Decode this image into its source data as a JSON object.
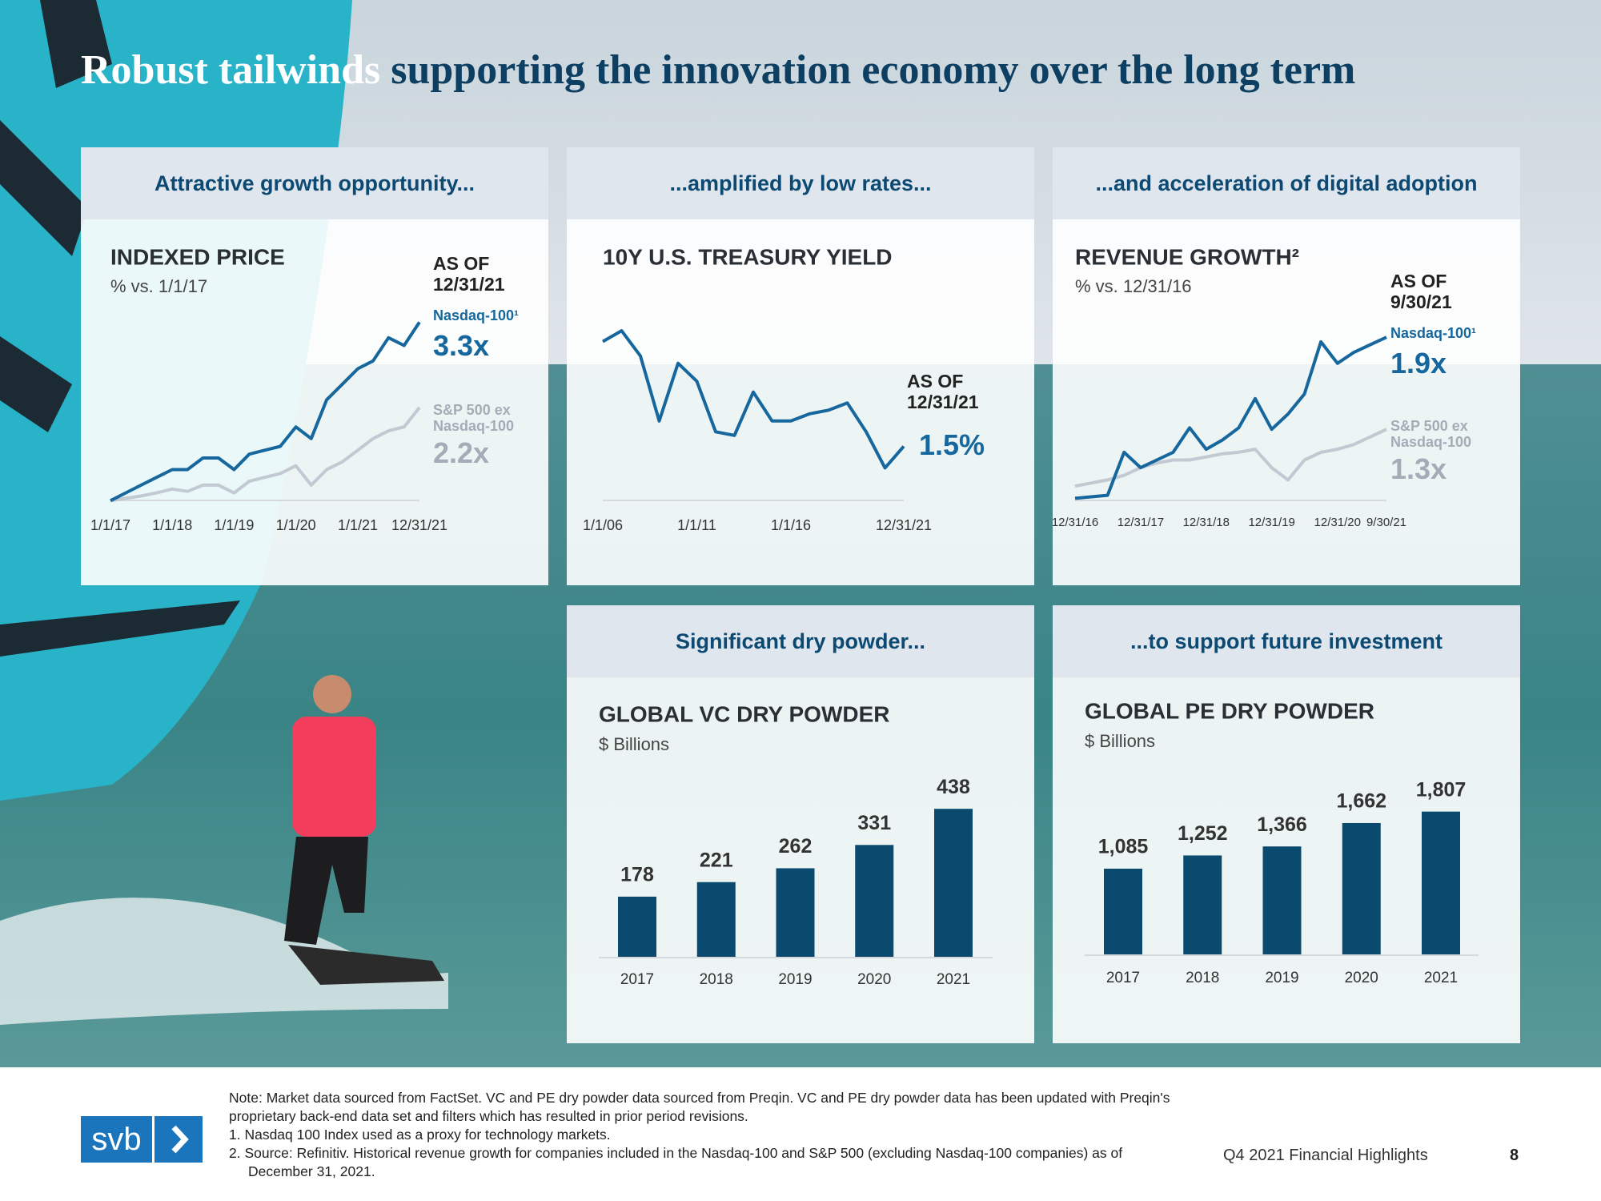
{
  "title": {
    "highlight": "Robust tailwinds",
    "rest": "supporting the innovation economy over the long term"
  },
  "chart_data": [
    {
      "type": "line",
      "panel_heading": "Attractive growth opportunity...",
      "title": "INDEXED PRICE",
      "subtitle": "% vs. 1/1/17",
      "as_of": "AS OF 12/31/21",
      "x": [
        "1/1/17",
        "4/1/17",
        "7/1/17",
        "10/1/17",
        "1/1/18",
        "4/1/18",
        "7/1/18",
        "10/1/18",
        "1/1/19",
        "4/1/19",
        "7/1/19",
        "10/1/19",
        "1/1/20",
        "4/1/20",
        "7/1/20",
        "10/1/20",
        "1/1/21",
        "4/1/21",
        "7/1/21",
        "10/1/21",
        "12/31/21"
      ],
      "xticks": [
        "1/1/17",
        "1/1/18",
        "1/1/19",
        "1/1/20",
        "1/1/21",
        "12/31/21"
      ],
      "ylim": [
        0.9,
        3.5
      ],
      "series": [
        {
          "name": "Nasdaq-100¹",
          "color": "#16679d",
          "end_label": "3.3x",
          "values": [
            1.0,
            1.1,
            1.2,
            1.3,
            1.4,
            1.4,
            1.55,
            1.55,
            1.4,
            1.6,
            1.65,
            1.7,
            1.95,
            1.8,
            2.3,
            2.5,
            2.7,
            2.8,
            3.1,
            3.0,
            3.3
          ]
        },
        {
          "name": "S&P 500 ex Nasdaq-100",
          "color": "#c2c9d2",
          "end_label": "2.2x",
          "values": [
            1.0,
            1.03,
            1.06,
            1.1,
            1.15,
            1.12,
            1.2,
            1.2,
            1.1,
            1.25,
            1.3,
            1.35,
            1.45,
            1.2,
            1.4,
            1.5,
            1.65,
            1.8,
            1.9,
            1.95,
            2.2
          ]
        }
      ]
    },
    {
      "type": "line",
      "panel_heading": "...amplified by low rates...",
      "title": "10Y U.S. TREASURY YIELD",
      "as_of": "AS OF 12/31/21",
      "x": [
        "1/1/06",
        "1/1/07",
        "1/1/08",
        "1/1/09",
        "1/1/10",
        "1/1/11",
        "1/1/12",
        "1/1/13",
        "1/1/14",
        "1/1/15",
        "1/1/16",
        "1/1/17",
        "1/1/18",
        "1/1/19",
        "1/1/20",
        "1/1/21",
        "12/31/21"
      ],
      "xticks": [
        "1/1/06",
        "1/1/11",
        "1/1/16",
        "12/31/21"
      ],
      "ylim": [
        0,
        5.5
      ],
      "series": [
        {
          "color": "#16679d",
          "end_label": "1.5%",
          "values": [
            4.4,
            4.7,
            4.0,
            2.2,
            3.8,
            3.3,
            1.9,
            1.8,
            3.0,
            2.2,
            2.2,
            2.4,
            2.5,
            2.7,
            1.9,
            0.9,
            1.5
          ]
        }
      ]
    },
    {
      "type": "line",
      "panel_heading": "...and acceleration of digital adoption",
      "title": "REVENUE GROWTH²",
      "subtitle": "% vs. 12/31/16",
      "as_of": "AS OF 9/30/21",
      "x": [
        "12/31/16",
        "3/31/17",
        "6/30/17",
        "9/30/17",
        "12/31/17",
        "3/31/18",
        "6/30/18",
        "9/30/18",
        "12/31/18",
        "3/31/19",
        "6/30/19",
        "9/30/19",
        "12/31/19",
        "3/31/20",
        "6/30/20",
        "9/30/20",
        "12/31/20",
        "3/31/21",
        "6/30/21",
        "9/30/21"
      ],
      "xticks": [
        "12/31/16",
        "12/31/17",
        "12/31/18",
        "12/31/19",
        "12/31/20",
        "9/30/21"
      ],
      "ylim": [
        0.8,
        2.0
      ],
      "series": [
        {
          "name": "Nasdaq-100¹",
          "color": "#16679d",
          "end_label": "1.9x",
          "values": [
            0.85,
            0.86,
            0.87,
            1.15,
            1.05,
            1.1,
            1.15,
            1.31,
            1.17,
            1.23,
            1.31,
            1.5,
            1.3,
            1.4,
            1.53,
            1.87,
            1.73,
            1.8,
            1.85,
            1.9
          ]
        },
        {
          "name": "S&P 500 ex Nasdaq-100",
          "color": "#c2c9d2",
          "end_label": "1.3x",
          "values": [
            0.93,
            0.95,
            0.97,
            1.0,
            1.05,
            1.08,
            1.1,
            1.1,
            1.12,
            1.14,
            1.15,
            1.17,
            1.05,
            0.97,
            1.1,
            1.15,
            1.17,
            1.2,
            1.25,
            1.3
          ]
        }
      ]
    },
    {
      "type": "bar",
      "panel_heading": "Significant dry powder...",
      "title": "GLOBAL VC DRY POWDER",
      "subtitle": "$ Billions",
      "categories": [
        "2017",
        "2018",
        "2019",
        "2020",
        "2021"
      ],
      "values": [
        178,
        221,
        262,
        331,
        438
      ],
      "color": "#0a4a6f",
      "ylim": [
        0,
        500
      ]
    },
    {
      "type": "bar",
      "panel_heading": "...to support future investment",
      "title": "GLOBAL PE DRY POWDER",
      "subtitle": "$ Billions",
      "categories": [
        "2017",
        "2018",
        "2019",
        "2020",
        "2021"
      ],
      "values": [
        1085,
        1252,
        1366,
        1662,
        1807
      ],
      "value_labels": [
        "1,085",
        "1,252",
        "1,366",
        "1,662",
        "1,807"
      ],
      "color": "#0a4a6f",
      "ylim": [
        0,
        2300
      ]
    }
  ],
  "footer": {
    "note": "Note: Market data sourced from FactSet. VC and PE dry powder data sourced from Preqin. VC and PE dry powder data has been updated with Preqin's proprietary back-end data set and filters which has resulted in prior period revisions.",
    "footnotes": [
      "1. Nasdaq 100 Index used as a proxy for technology markets.",
      "2. Source: Refinitiv. Historical revenue growth for companies included in the Nasdaq-100 and S&P 500 (excluding Nasdaq-100 companies) as of December 31, 2021."
    ],
    "logo": "svb",
    "deck": "Q4 2021 Financial Highlights",
    "page": "8"
  }
}
